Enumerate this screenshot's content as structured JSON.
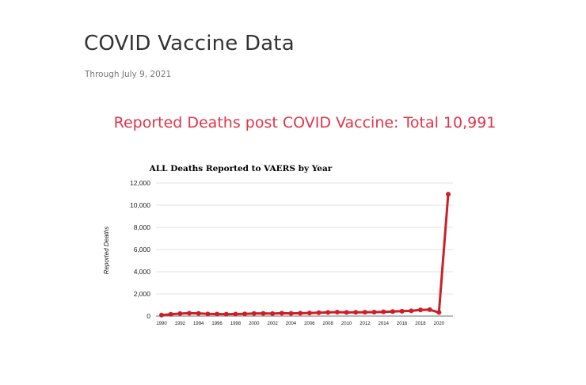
{
  "page": {
    "title": "COVID Vaccine Data",
    "subtitle": "Through July 9, 2021",
    "headline": "Reported Deaths post COVID Vaccine: Total 10,991"
  },
  "colors": {
    "headline": "#e0344a",
    "series": "#cc1f27",
    "grid": "#d9d9d9"
  },
  "chart_data": {
    "type": "line",
    "title": "ALL Deaths Reported to VAERS by Year",
    "xlabel": "",
    "ylabel": "Reported Deaths",
    "ylim": [
      0,
      12000
    ],
    "yticks": [
      0,
      2000,
      4000,
      6000,
      8000,
      10000,
      12000
    ],
    "ytick_labels": [
      "0",
      "2,000",
      "4,000",
      "6,000",
      "8,000",
      "10,000",
      "12,000"
    ],
    "xtick_labels": [
      "1990",
      "1992",
      "1994",
      "1996",
      "1998",
      "2000",
      "2002",
      "2004",
      "2006",
      "2008",
      "2010",
      "2012",
      "2014",
      "2016",
      "2018",
      "2020"
    ],
    "grid": true,
    "series": [
      {
        "x": [
          1990,
          1991,
          1992,
          1993,
          1994,
          1995,
          1996,
          1997,
          1998,
          1999,
          2000,
          2001,
          2002,
          2003,
          2004,
          2005,
          2006,
          2007,
          2008,
          2009,
          2010,
          2011,
          2012,
          2013,
          2014,
          2015,
          2016,
          2017,
          2018,
          2019,
          2020,
          2021
        ],
        "values": [
          90,
          160,
          220,
          260,
          240,
          190,
          180,
          170,
          180,
          200,
          230,
          240,
          220,
          260,
          240,
          260,
          280,
          300,
          330,
          360,
          330,
          340,
          350,
          360,
          380,
          410,
          440,
          470,
          550,
          580,
          330,
          10991
        ]
      }
    ]
  }
}
